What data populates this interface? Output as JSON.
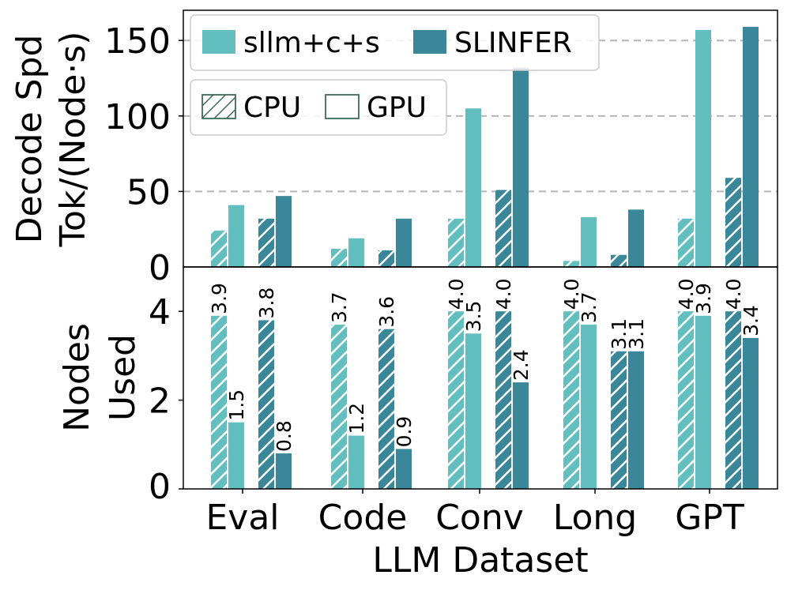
{
  "chart_data": [
    {
      "type": "bar",
      "title": "",
      "ylabel_lines": [
        "Decode Spd",
        "Tok/(Node·s)"
      ],
      "xlabel": "",
      "ylim": [
        0,
        170
      ],
      "yticks": [
        0,
        50,
        100,
        150
      ],
      "grid": "horizontal-dashed",
      "categories": [
        "Eval",
        "Code",
        "Conv",
        "Long",
        "GPT"
      ],
      "series": [
        {
          "name": "sllm+c+s CPU",
          "method": "sllm+c+s",
          "device": "CPU",
          "color": "#63bfbf",
          "hatched": true,
          "values": [
            24,
            12,
            32,
            4,
            32
          ]
        },
        {
          "name": "sllm+c+s GPU",
          "method": "sllm+c+s",
          "device": "GPU",
          "color": "#63bfbf",
          "hatched": false,
          "values": [
            41,
            19,
            105,
            33,
            157
          ]
        },
        {
          "name": "SLINFER CPU",
          "method": "SLINFER",
          "device": "CPU",
          "color": "#3a8799",
          "hatched": true,
          "values": [
            32,
            11,
            51,
            8,
            59
          ]
        },
        {
          "name": "SLINFER GPU",
          "method": "SLINFER",
          "device": "GPU",
          "color": "#3a8799",
          "hatched": false,
          "values": [
            47,
            32,
            132,
            38,
            159
          ]
        }
      ],
      "legends": [
        {
          "position": "top-left",
          "entries": [
            "sllm+c+s",
            "SLINFER"
          ]
        },
        {
          "position": "upper-left",
          "entries": [
            "CPU",
            "GPU"
          ]
        }
      ]
    },
    {
      "type": "bar",
      "title": "",
      "ylabel_lines": [
        "Nodes",
        "Used"
      ],
      "xlabel": "LLM Dataset",
      "ylim": [
        0,
        5
      ],
      "yticks": [
        0,
        2,
        4
      ],
      "categories": [
        "Eval",
        "Code",
        "Conv",
        "Long",
        "GPT"
      ],
      "series": [
        {
          "name": "sllm+c+s CPU",
          "values": [
            3.9,
            3.7,
            4.0,
            4.0,
            4.0
          ],
          "labels": [
            "3.9",
            "3.7",
            "4.0",
            "4.0",
            "4.0"
          ]
        },
        {
          "name": "sllm+c+s GPU",
          "values": [
            1.5,
            1.2,
            3.5,
            3.7,
            3.9
          ],
          "labels": [
            "1.5",
            "1.2",
            "3.5",
            "3.7",
            "3.9"
          ]
        },
        {
          "name": "SLINFER CPU",
          "values": [
            3.8,
            3.6,
            4.0,
            3.1,
            4.0
          ],
          "labels": [
            "3.8",
            "3.6",
            "4.0",
            "3.1",
            "4.0"
          ]
        },
        {
          "name": "SLINFER GPU",
          "values": [
            0.8,
            0.9,
            2.4,
            3.1,
            3.4
          ],
          "labels": [
            "0.8",
            "0.9",
            "2.4",
            "3.1",
            "3.4"
          ]
        }
      ]
    }
  ]
}
